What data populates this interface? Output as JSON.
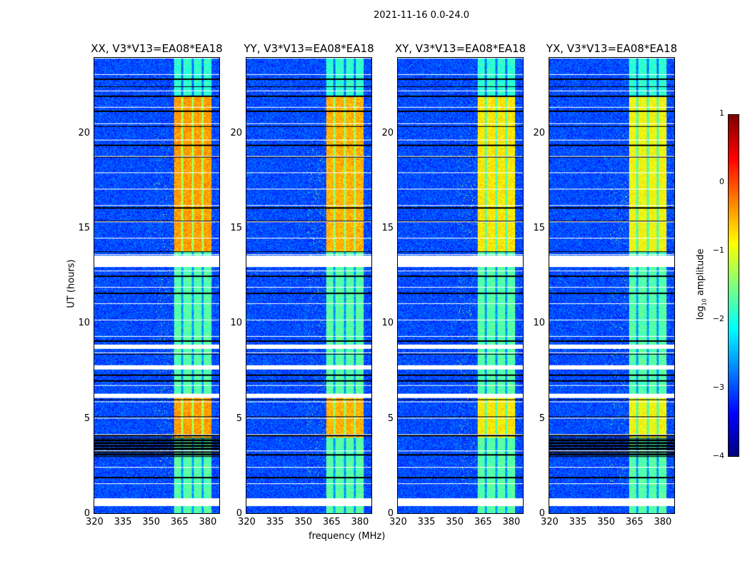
{
  "chart_data": {
    "type": "heatmap",
    "title": "2021-11-16 0.0-24.0",
    "xlabel": "frequency (MHz)",
    "ylabel": "UT (hours)",
    "xlim": [
      320,
      387
    ],
    "ylim": [
      0,
      24
    ],
    "xticks": [
      "320",
      "335",
      "350",
      "365",
      "380"
    ],
    "yticks": [
      "0",
      "5",
      "10",
      "15",
      "20"
    ],
    "colorbar": {
      "label": "log10 amplitude",
      "label_main": "log",
      "label_sub": "10",
      "label_tail": " amplitude",
      "range": [
        -4,
        1
      ],
      "ticks": [
        "1",
        "0",
        "−1",
        "−2",
        "−3",
        "−4"
      ],
      "colormap": "jet"
    },
    "background_level": -3.0,
    "signal_band_mhz": [
      362.5,
      382.5
    ],
    "band_gaps_mhz": [
      366.8,
      372.5,
      377.8
    ],
    "flagged_white_hours": [
      [
        0.4,
        0.8
      ],
      [
        6.1,
        6.3
      ],
      [
        7.6,
        7.8
      ],
      [
        8.7,
        8.9
      ],
      [
        13.0,
        13.6
      ]
    ],
    "black_line_hours": [
      1.9,
      3.1,
      4.1,
      5.1,
      6.0,
      7.0,
      7.3,
      8.4,
      9.1,
      11.6,
      12.5,
      13.8,
      15.4,
      16.1,
      17.1,
      18.8,
      19.4,
      20.4,
      21.2,
      22.0,
      22.5,
      22.9
    ],
    "panels": [
      {
        "title": "XX, V3*V13=EA08*EA18",
        "strong_level": -0.4,
        "black_block_hours": [
          3.0,
          4.0
        ]
      },
      {
        "title": "YY, V3*V13=EA08*EA18",
        "strong_level": -0.5,
        "black_block_hours": null
      },
      {
        "title": "XY, V3*V13=EA08*EA18",
        "strong_level": -0.8,
        "black_block_hours": null
      },
      {
        "title": "YX, V3*V13=EA08*EA18",
        "strong_level": -0.9,
        "black_block_hours": [
          3.0,
          4.0
        ]
      }
    ],
    "strong_hours": [
      [
        13.8,
        22.0
      ],
      [
        4.0,
        6.1
      ]
    ],
    "weak_level": -1.7
  }
}
